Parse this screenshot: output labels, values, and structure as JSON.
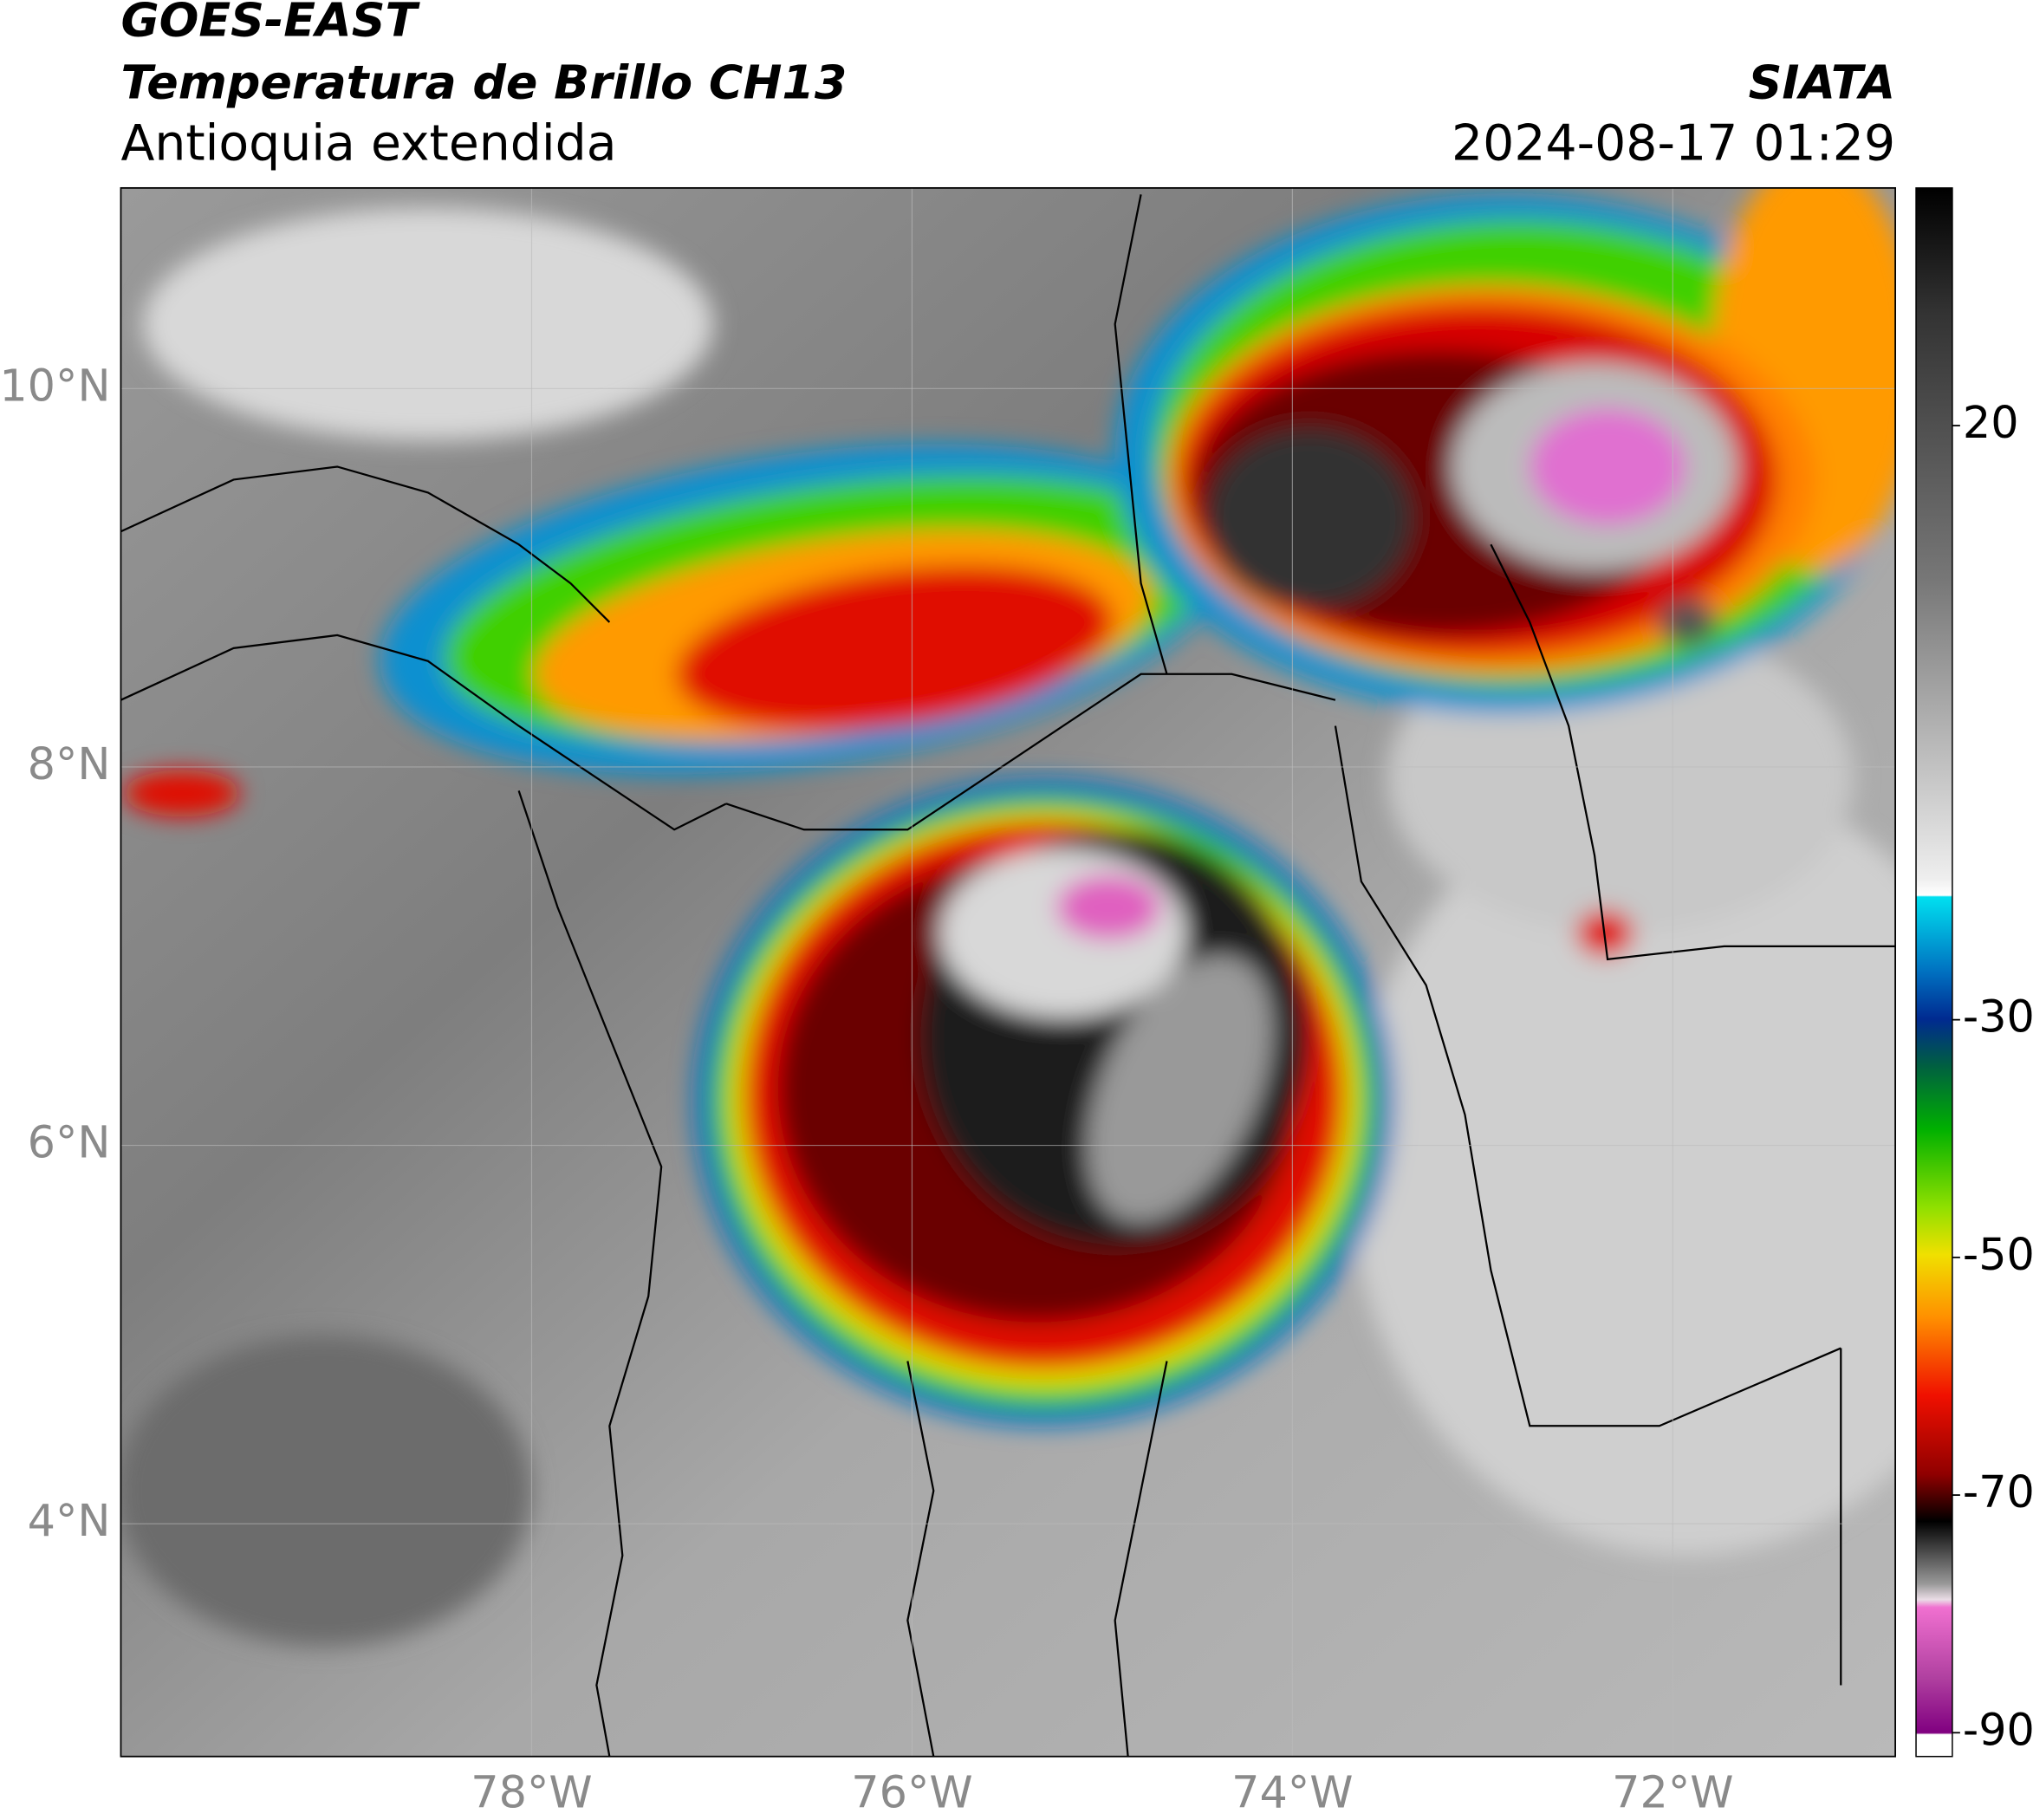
{
  "header": {
    "satellite": "GOES-EAST",
    "product": "Temperatura de Brillo CH13",
    "region": "Antioquia extendida",
    "agency": "SIATA",
    "datetime": "2024-08-17 01:29"
  },
  "map": {
    "xlim": [
      -80.16,
      -70.83
    ],
    "ylim": [
      2.77,
      11.06
    ],
    "xticks": [
      {
        "value": -78,
        "label": "78°W"
      },
      {
        "value": -76,
        "label": "76°W"
      },
      {
        "value": -74,
        "label": "74°W"
      },
      {
        "value": -72,
        "label": "72°W"
      }
    ],
    "yticks": [
      {
        "value": 4,
        "label": "4°N"
      },
      {
        "value": 6,
        "label": "6°N"
      },
      {
        "value": 8,
        "label": "8°N"
      },
      {
        "value": 10,
        "label": "10°N"
      }
    ],
    "grid": true
  },
  "colorbar": {
    "clim": [
      -92,
      40
    ],
    "ticks": [
      -90,
      -70,
      -50,
      -30,
      20
    ]
  }
}
